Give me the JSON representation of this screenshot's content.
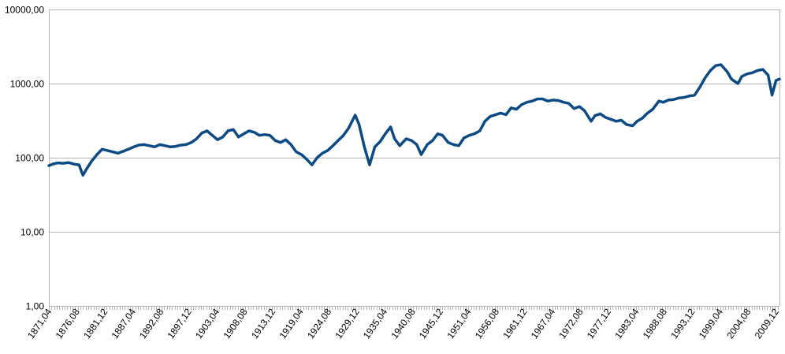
{
  "chart_data": {
    "type": "line",
    "title": "",
    "xlabel": "",
    "ylabel": "",
    "yscale": "log",
    "ylim": [
      1,
      10000
    ],
    "xlim": [
      "1871,04",
      "2010,08"
    ],
    "grid": "horizontal",
    "legend": "none",
    "colors": {
      "line": "#0c4a86",
      "grid": "#b3b3b3",
      "axis": "#b3b3b3",
      "background": "#ffffff"
    },
    "y_tick_labels": [
      "1,00",
      "10,00",
      "100,00",
      "1000,00",
      "10000,00"
    ],
    "x_tick_labels": [
      "1871,04",
      "1876,08",
      "1881,12",
      "1887,04",
      "1892,08",
      "1897,12",
      "1903,04",
      "1908,08",
      "1913,12",
      "1919,04",
      "1924,08",
      "1929,12",
      "1935,04",
      "1940,08",
      "1945,12",
      "1951,04",
      "1956,08",
      "1961,12",
      "1967,04",
      "1972,08",
      "1977,12",
      "1983,04",
      "1988,08",
      "1993,12",
      "1999,04",
      "2004,08",
      "2009,12"
    ],
    "series": [
      {
        "x": [
          "1871,04",
          "1872,01",
          "1873,01",
          "1874,01",
          "1875,01",
          "1876,01",
          "1877,01",
          "1877,10",
          "1878,06",
          "1879,06",
          "1880,06",
          "1881,06",
          "1882,06",
          "1883,06",
          "1884,06",
          "1885,06",
          "1886,06",
          "1887,06",
          "1888,06",
          "1889,06",
          "1890,06",
          "1891,06",
          "1892,06",
          "1893,06",
          "1894,06",
          "1895,06",
          "1896,06",
          "1897,06",
          "1898,06",
          "1899,06",
          "1900,06",
          "1901,06",
          "1902,06",
          "1903,06",
          "1904,06",
          "1905,06",
          "1906,06",
          "1907,06",
          "1908,06",
          "1909,06",
          "1910,06",
          "1911,06",
          "1912,06",
          "1913,06",
          "1914,06",
          "1915,06",
          "1916,06",
          "1917,06",
          "1918,06",
          "1919,06",
          "1920,06",
          "1921,06",
          "1922,06",
          "1923,06",
          "1924,06",
          "1925,06",
          "1926,06",
          "1927,06",
          "1928,06",
          "1929,09",
          "1930,06",
          "1931,06",
          "1932,06",
          "1933,06",
          "1934,06",
          "1935,06",
          "1936,06",
          "1937,03",
          "1938,03",
          "1939,06",
          "1940,06",
          "1941,06",
          "1942,04",
          "1943,06",
          "1944,06",
          "1945,06",
          "1946,05",
          "1947,06",
          "1948,06",
          "1949,06",
          "1950,06",
          "1951,06",
          "1952,06",
          "1953,06",
          "1954,06",
          "1955,06",
          "1956,06",
          "1957,06",
          "1958,06",
          "1959,06",
          "1960,06",
          "1961,06",
          "1962,06",
          "1963,06",
          "1964,06",
          "1965,06",
          "1966,06",
          "1967,06",
          "1968,06",
          "1969,06",
          "1970,06",
          "1971,06",
          "1972,06",
          "1973,06",
          "1974,09",
          "1975,06",
          "1976,06",
          "1977,06",
          "1978,06",
          "1979,06",
          "1980,06",
          "1981,06",
          "1982,08",
          "1983,06",
          "1984,06",
          "1985,06",
          "1986,06",
          "1987,08",
          "1988,06",
          "1989,06",
          "1990,06",
          "1991,06",
          "1992,06",
          "1993,06",
          "1994,06",
          "1995,06",
          "1996,06",
          "1997,06",
          "1998,06",
          "1999,06",
          "2000,08",
          "2001,06",
          "2002,09",
          "2003,06",
          "2004,06",
          "2005,06",
          "2006,06",
          "2007,06",
          "2008,06",
          "2009,03",
          "2009,12",
          "2010,08"
        ],
        "values": [
          78,
          82,
          85,
          84,
          86,
          82,
          80,
          58,
          70,
          90,
          110,
          130,
          125,
          120,
          115,
          122,
          130,
          140,
          148,
          150,
          145,
          140,
          150,
          145,
          140,
          142,
          148,
          150,
          160,
          180,
          215,
          230,
          200,
          175,
          190,
          230,
          240,
          190,
          210,
          230,
          220,
          200,
          205,
          200,
          170,
          160,
          175,
          150,
          120,
          110,
          95,
          80,
          100,
          115,
          125,
          145,
          170,
          200,
          250,
          375,
          280,
          140,
          80,
          140,
          165,
          210,
          260,
          180,
          145,
          180,
          170,
          150,
          110,
          150,
          170,
          210,
          200,
          160,
          150,
          145,
          185,
          200,
          210,
          230,
          310,
          360,
          380,
          400,
          380,
          470,
          450,
          520,
          560,
          580,
          620,
          620,
          580,
          600,
          590,
          560,
          540,
          460,
          490,
          430,
          310,
          370,
          390,
          350,
          330,
          310,
          320,
          280,
          270,
          310,
          340,
          400,
          450,
          580,
          560,
          600,
          610,
          640,
          650,
          680,
          700,
          900,
          1200,
          1500,
          1750,
          1800,
          1450,
          1150,
          1000,
          1250,
          1350,
          1400,
          1500,
          1550,
          1300,
          700,
          1100,
          1150
        ]
      }
    ]
  }
}
